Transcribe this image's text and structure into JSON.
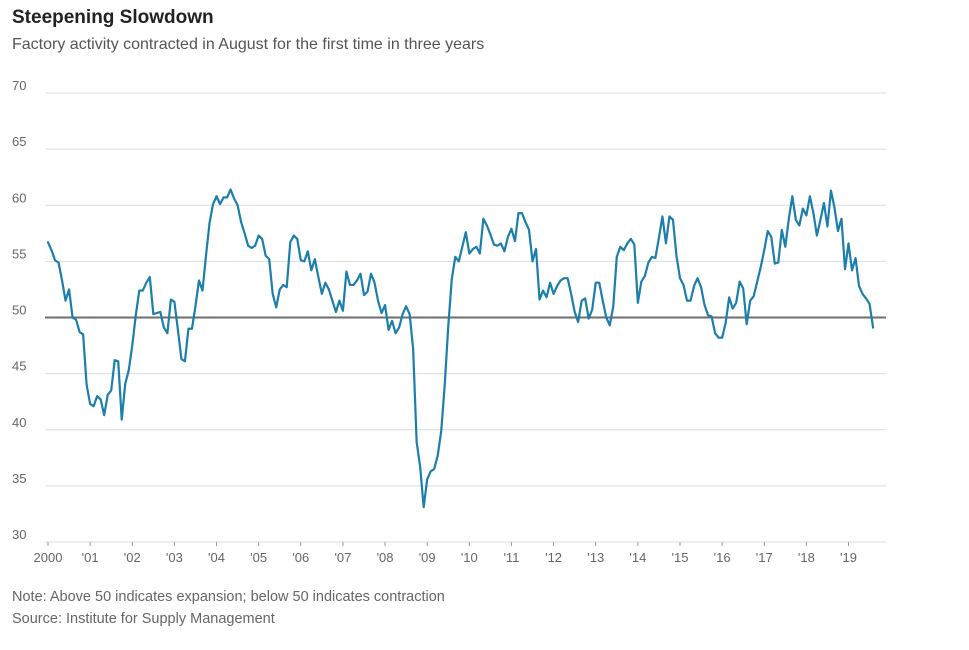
{
  "header": {
    "title": "Steepening Slowdown",
    "subtitle": "Factory activity contracted in August for the first time in three years"
  },
  "footer": {
    "note": "Note: Above 50 indicates expansion; below 50 indicates contraction",
    "source": "Source: Institute for Supply Management"
  },
  "colors": {
    "series": "#1b7eab",
    "reference_line": "#6e6e6e",
    "grid": "#dddddd"
  },
  "chart_data": {
    "type": "line",
    "title": "Steepening Slowdown",
    "subtitle": "Factory activity contracted in August for the first time in three years",
    "xlabel": "",
    "ylabel": "",
    "ylim": [
      30,
      70
    ],
    "yticks": [
      30,
      35,
      40,
      45,
      50,
      55,
      60,
      65,
      70
    ],
    "ytick_labels": [
      "30",
      "35",
      "40",
      "45",
      "50",
      "55",
      "60",
      "65",
      "70"
    ],
    "xlim": [
      2000.0,
      2019.7
    ],
    "xticks": [
      2000,
      2001,
      2002,
      2003,
      2004,
      2005,
      2006,
      2007,
      2008,
      2009,
      2010,
      2011,
      2012,
      2013,
      2014,
      2015,
      2016,
      2017,
      2018,
      2019
    ],
    "xtick_labels": [
      "2000",
      "'01",
      "'02",
      "'03",
      "'04",
      "'05",
      "'06",
      "'07",
      "'08",
      "'09",
      "'10",
      "'11",
      "'12",
      "'13",
      "'14",
      "'15",
      "'16",
      "'17",
      "'18",
      "'19"
    ],
    "grid": true,
    "reference_line": 50,
    "series": [
      {
        "start_year": 2000,
        "start_month": 1,
        "frequency": "monthly",
        "values": [
          56.7,
          56.0,
          55.1,
          54.9,
          53.3,
          51.5,
          52.5,
          50.0,
          49.8,
          48.7,
          48.5,
          44.0,
          42.3,
          42.1,
          43.0,
          42.7,
          41.3,
          43.1,
          43.5,
          46.2,
          46.1,
          40.9,
          44.1,
          45.3,
          47.5,
          50.2,
          52.4,
          52.4,
          53.1,
          53.6,
          50.3,
          50.4,
          50.5,
          49.1,
          48.6,
          51.6,
          51.4,
          48.9,
          46.3,
          46.1,
          49.0,
          49.0,
          51.0,
          53.3,
          52.4,
          55.5,
          58.4,
          60.1,
          60.8,
          60.1,
          60.7,
          60.7,
          61.4,
          60.6,
          60.0,
          58.5,
          57.5,
          56.4,
          56.2,
          56.4,
          57.3,
          57.0,
          55.5,
          55.2,
          52.1,
          50.9,
          52.5,
          52.9,
          52.7,
          56.7,
          57.3,
          57.0,
          55.1,
          55.0,
          55.9,
          54.2,
          55.2,
          53.6,
          52.1,
          53.1,
          52.5,
          51.5,
          50.5,
          51.5,
          50.6,
          54.1,
          52.9,
          52.9,
          53.3,
          53.9,
          52.0,
          52.3,
          53.9,
          53.1,
          51.5,
          50.4,
          51.1,
          48.9,
          49.7,
          48.6,
          49.1,
          50.3,
          51.0,
          50.3,
          47.2,
          38.9,
          36.7,
          33.1,
          35.6,
          36.3,
          36.5,
          37.7,
          39.9,
          44.0,
          49.2,
          53.4,
          55.4,
          55.0,
          56.3,
          57.6,
          55.7,
          56.1,
          56.3,
          55.7,
          58.8,
          58.2,
          57.4,
          56.5,
          56.4,
          56.6,
          55.9,
          57.2,
          57.9,
          56.8,
          59.3,
          59.3,
          58.5,
          57.8,
          55.0,
          56.1,
          51.6,
          52.4,
          51.8,
          53.1,
          52.1,
          52.8,
          53.3,
          53.5,
          53.5,
          52.1,
          50.5,
          49.6,
          51.5,
          51.7,
          49.9,
          50.7,
          53.1,
          53.1,
          51.5,
          50.0,
          49.3,
          51.0,
          55.4,
          56.3,
          56.0,
          56.6,
          57.0,
          56.5,
          51.3,
          53.2,
          53.7,
          54.9,
          55.4,
          55.3,
          57.1,
          59.0,
          56.6,
          59.0,
          58.7,
          55.5,
          53.5,
          52.9,
          51.5,
          51.5,
          52.8,
          53.5,
          52.7,
          51.1,
          50.2,
          50.1,
          48.6,
          48.2,
          48.2,
          49.5,
          51.8,
          50.8,
          51.3,
          53.2,
          52.6,
          49.4,
          51.5,
          51.9,
          53.2,
          54.5,
          56.0,
          57.7,
          57.2,
          54.8,
          54.9,
          57.8,
          56.3,
          58.8,
          60.8,
          58.7,
          58.2,
          59.7,
          59.1,
          60.8,
          59.3,
          57.3,
          58.7,
          60.2,
          58.1,
          61.3,
          59.8,
          57.7,
          58.8,
          54.3,
          56.6,
          54.2,
          55.3,
          52.8,
          52.1,
          51.7,
          51.2,
          49.1
        ]
      }
    ]
  }
}
